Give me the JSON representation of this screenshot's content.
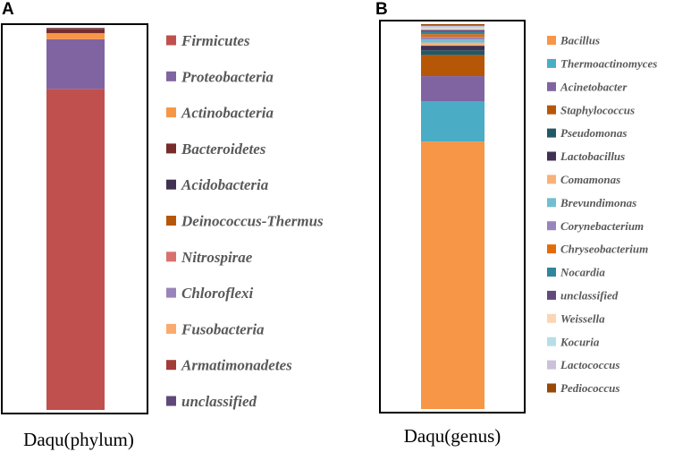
{
  "chart_data": [
    {
      "panel": "A",
      "type": "bar",
      "stacked": true,
      "xlabel": "Daqu(phylum)",
      "ylim": [
        0,
        100
      ],
      "series": [
        {
          "name": "Firmicutes",
          "value": 84.0,
          "color": "#C0504D"
        },
        {
          "name": "Proteobacteria",
          "value": 13.0,
          "color": "#8064A2"
        },
        {
          "name": "Actinobacteria",
          "value": 1.6,
          "color": "#F79646"
        },
        {
          "name": "Bacteroidetes",
          "value": 1.0,
          "color": "#772C2A"
        },
        {
          "name": "Acidobacteria",
          "value": 0.1,
          "color": "#403152"
        },
        {
          "name": "Deinococcus-Thermus",
          "value": 0.1,
          "color": "#B65708"
        },
        {
          "name": "Nitrospirae",
          "value": 0.05,
          "color": "#D9726E"
        },
        {
          "name": "Chloroflexi",
          "value": 0.05,
          "color": "#9A84BC"
        },
        {
          "name": "Fusobacteria",
          "value": 0.04,
          "color": "#FAAA6D"
        },
        {
          "name": "Armatimonadetes",
          "value": 0.03,
          "color": "#A33B37"
        },
        {
          "name": "unclassified",
          "value": 0.03,
          "color": "#5F497A"
        }
      ]
    },
    {
      "panel": "B",
      "type": "bar",
      "stacked": true,
      "xlabel": "Daqu(genus)",
      "ylim": [
        0,
        100
      ],
      "series": [
        {
          "name": "Bacillus",
          "value": 69.5,
          "color": "#F79646"
        },
        {
          "name": "Thermoactinomyces",
          "value": 10.5,
          "color": "#4BACC6"
        },
        {
          "name": "Acinetobacter",
          "value": 6.5,
          "color": "#8064A2"
        },
        {
          "name": "Staphylococcus",
          "value": 5.5,
          "color": "#B65708"
        },
        {
          "name": "Pseudomonas",
          "value": 1.2,
          "color": "#215967"
        },
        {
          "name": "Lactobacillus",
          "value": 1.2,
          "color": "#403152"
        },
        {
          "name": "Comamonas",
          "value": 0.8,
          "color": "#F9B17A"
        },
        {
          "name": "Brevundimonas",
          "value": 0.8,
          "color": "#71BED1"
        },
        {
          "name": "Corynebacterium",
          "value": 0.7,
          "color": "#9A84BC"
        },
        {
          "name": "Chryseobacterium",
          "value": 0.7,
          "color": "#E36C09"
        },
        {
          "name": "Nocardia",
          "value": 0.6,
          "color": "#31859C"
        },
        {
          "name": "unclassified",
          "value": 0.5,
          "color": "#604A7B"
        },
        {
          "name": "Weissella",
          "value": 0.4,
          "color": "#FCD5B4"
        },
        {
          "name": "Kocuria",
          "value": 0.4,
          "color": "#B7DEE8"
        },
        {
          "name": "Lactococcus",
          "value": 0.3,
          "color": "#CCC0DA"
        },
        {
          "name": "Pediococcus",
          "value": 0.4,
          "color": "#984807"
        }
      ]
    }
  ]
}
